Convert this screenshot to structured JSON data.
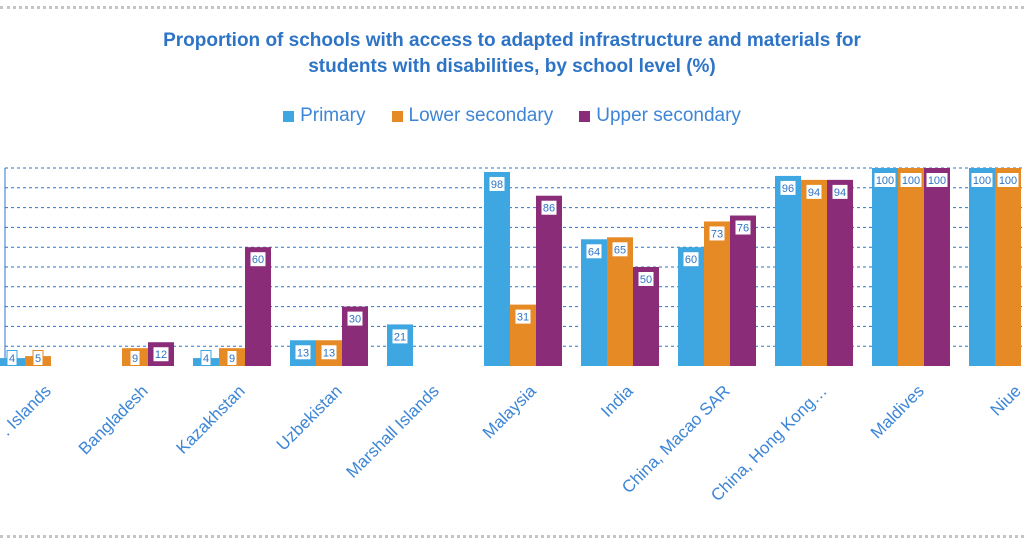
{
  "chart_data": {
    "type": "bar",
    "title": "Proportion of  schools with access to adapted infrastructure and materials for students with disabilities, by school level (%)",
    "title_lines": [
      "Proportion of  schools with access to adapted infrastructure and materials for",
      "students with disabilities, by school level (%)"
    ],
    "categories": [
      ". Islands",
      "Bangladesh",
      "Kazakhstan",
      "Uzbekistan",
      "Marshall Islands",
      "Malaysia",
      "India",
      "China, Macao SAR",
      "China, Hong Kong…",
      "Maldives",
      "Niue"
    ],
    "series": [
      {
        "name": "Primary",
        "color": "#3ea6e0",
        "values": [
          4,
          null,
          4,
          13,
          21,
          98,
          64,
          60,
          96,
          100,
          100
        ]
      },
      {
        "name": "Lower secondary",
        "color": "#e68a26",
        "values": [
          5,
          9,
          9,
          13,
          null,
          31,
          65,
          73,
          94,
          100,
          100
        ]
      },
      {
        "name": "Upper secondary",
        "color": "#8b2c78",
        "values": [
          null,
          12,
          60,
          30,
          null,
          86,
          50,
          76,
          94,
          100,
          null
        ]
      }
    ],
    "ylim": [
      0,
      100
    ],
    "grid": true,
    "legend_position": "top-center",
    "data_labels": true
  }
}
